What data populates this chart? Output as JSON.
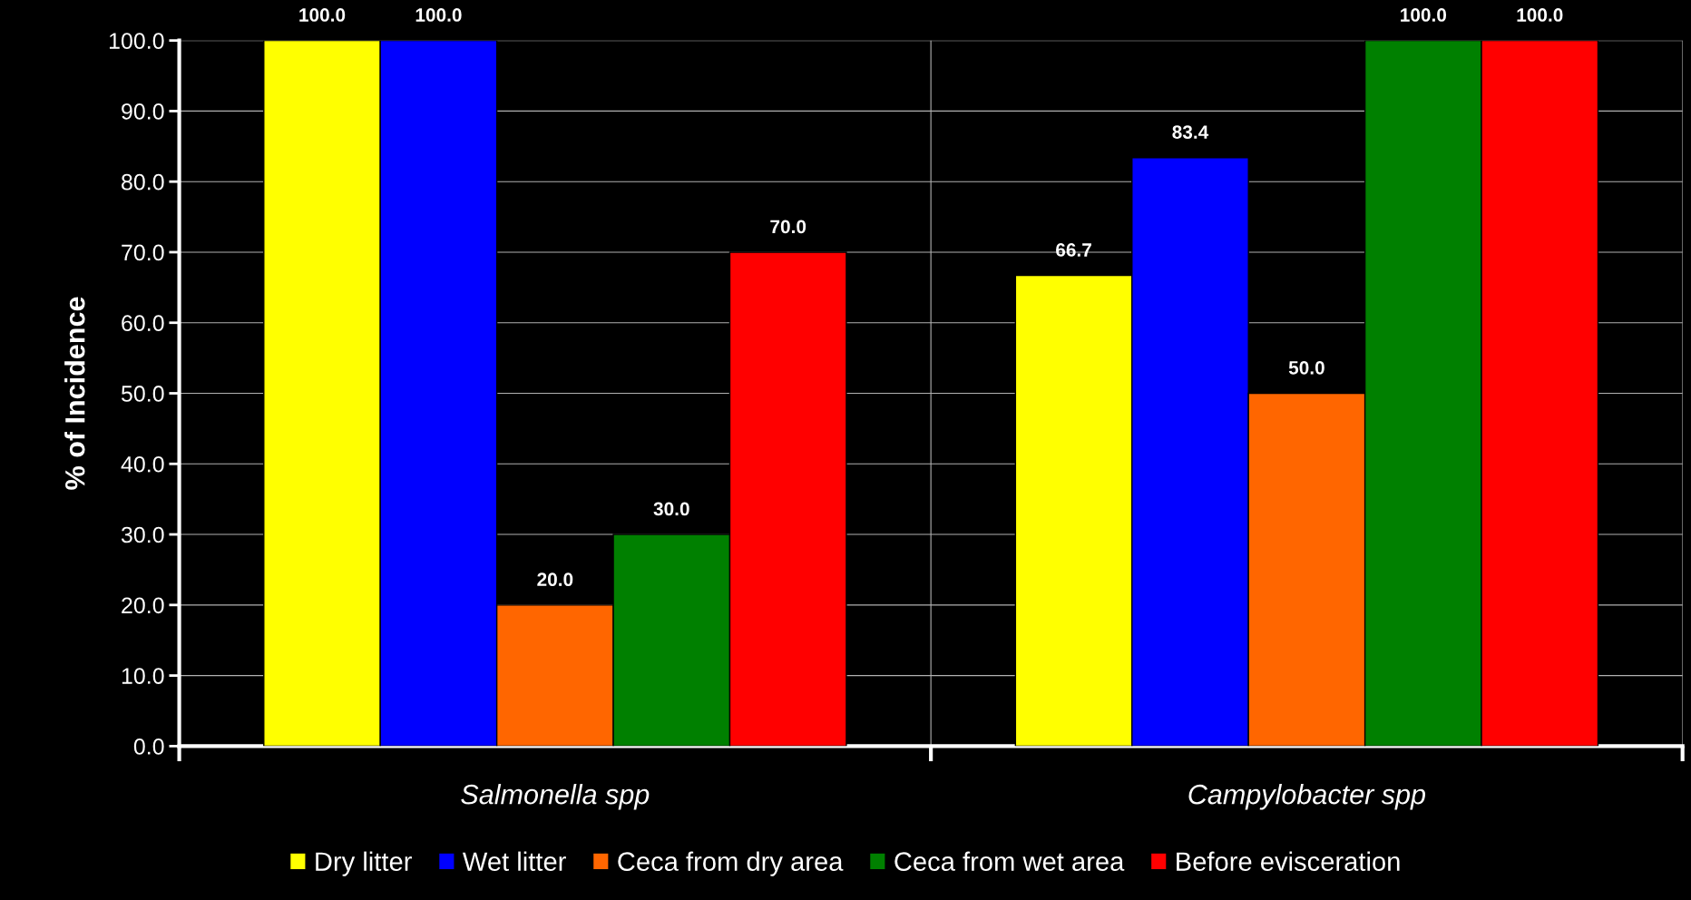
{
  "chart_data": {
    "type": "bar",
    "ylabel": "% of Incidence",
    "categories": [
      "Salmonella spp",
      "Campylobacter spp"
    ],
    "series": [
      {
        "name": "Dry litter",
        "color": "#ffff00",
        "values": [
          100,
          66.7
        ],
        "value_labels": [
          "100.0",
          "66.7"
        ]
      },
      {
        "name": "Wet litter",
        "color": "#0000ff",
        "values": [
          100,
          83.4
        ],
        "value_labels": [
          "100.0",
          "83.4"
        ]
      },
      {
        "name": "Ceca from dry area",
        "color": "#ff6600",
        "values": [
          20,
          50
        ],
        "value_labels": [
          "20.0",
          "50.0"
        ]
      },
      {
        "name": "Ceca from wet area",
        "color": "#008000",
        "values": [
          30,
          100
        ],
        "value_labels": [
          "30.0",
          "100.0"
        ]
      },
      {
        "name": "Before evisceration",
        "color": "#ff0000",
        "values": [
          70,
          100
        ],
        "value_labels": [
          "70.0",
          "100.0"
        ]
      }
    ],
    "ylim": [
      0,
      100
    ],
    "yticks": [
      {
        "value": 0,
        "label": "0.0"
      },
      {
        "value": 10,
        "label": "10.0"
      },
      {
        "value": 20,
        "label": "20.0"
      },
      {
        "value": 30,
        "label": "30.0"
      },
      {
        "value": 40,
        "label": "40.0"
      },
      {
        "value": 50,
        "label": "50.0"
      },
      {
        "value": 60,
        "label": "60.0"
      },
      {
        "value": 70,
        "label": "70.0"
      },
      {
        "value": 80,
        "label": "80.0"
      },
      {
        "value": 90,
        "label": "90.0"
      },
      {
        "value": 100,
        "label": "100.0"
      }
    ],
    "grid": true,
    "legend": "bottom"
  }
}
